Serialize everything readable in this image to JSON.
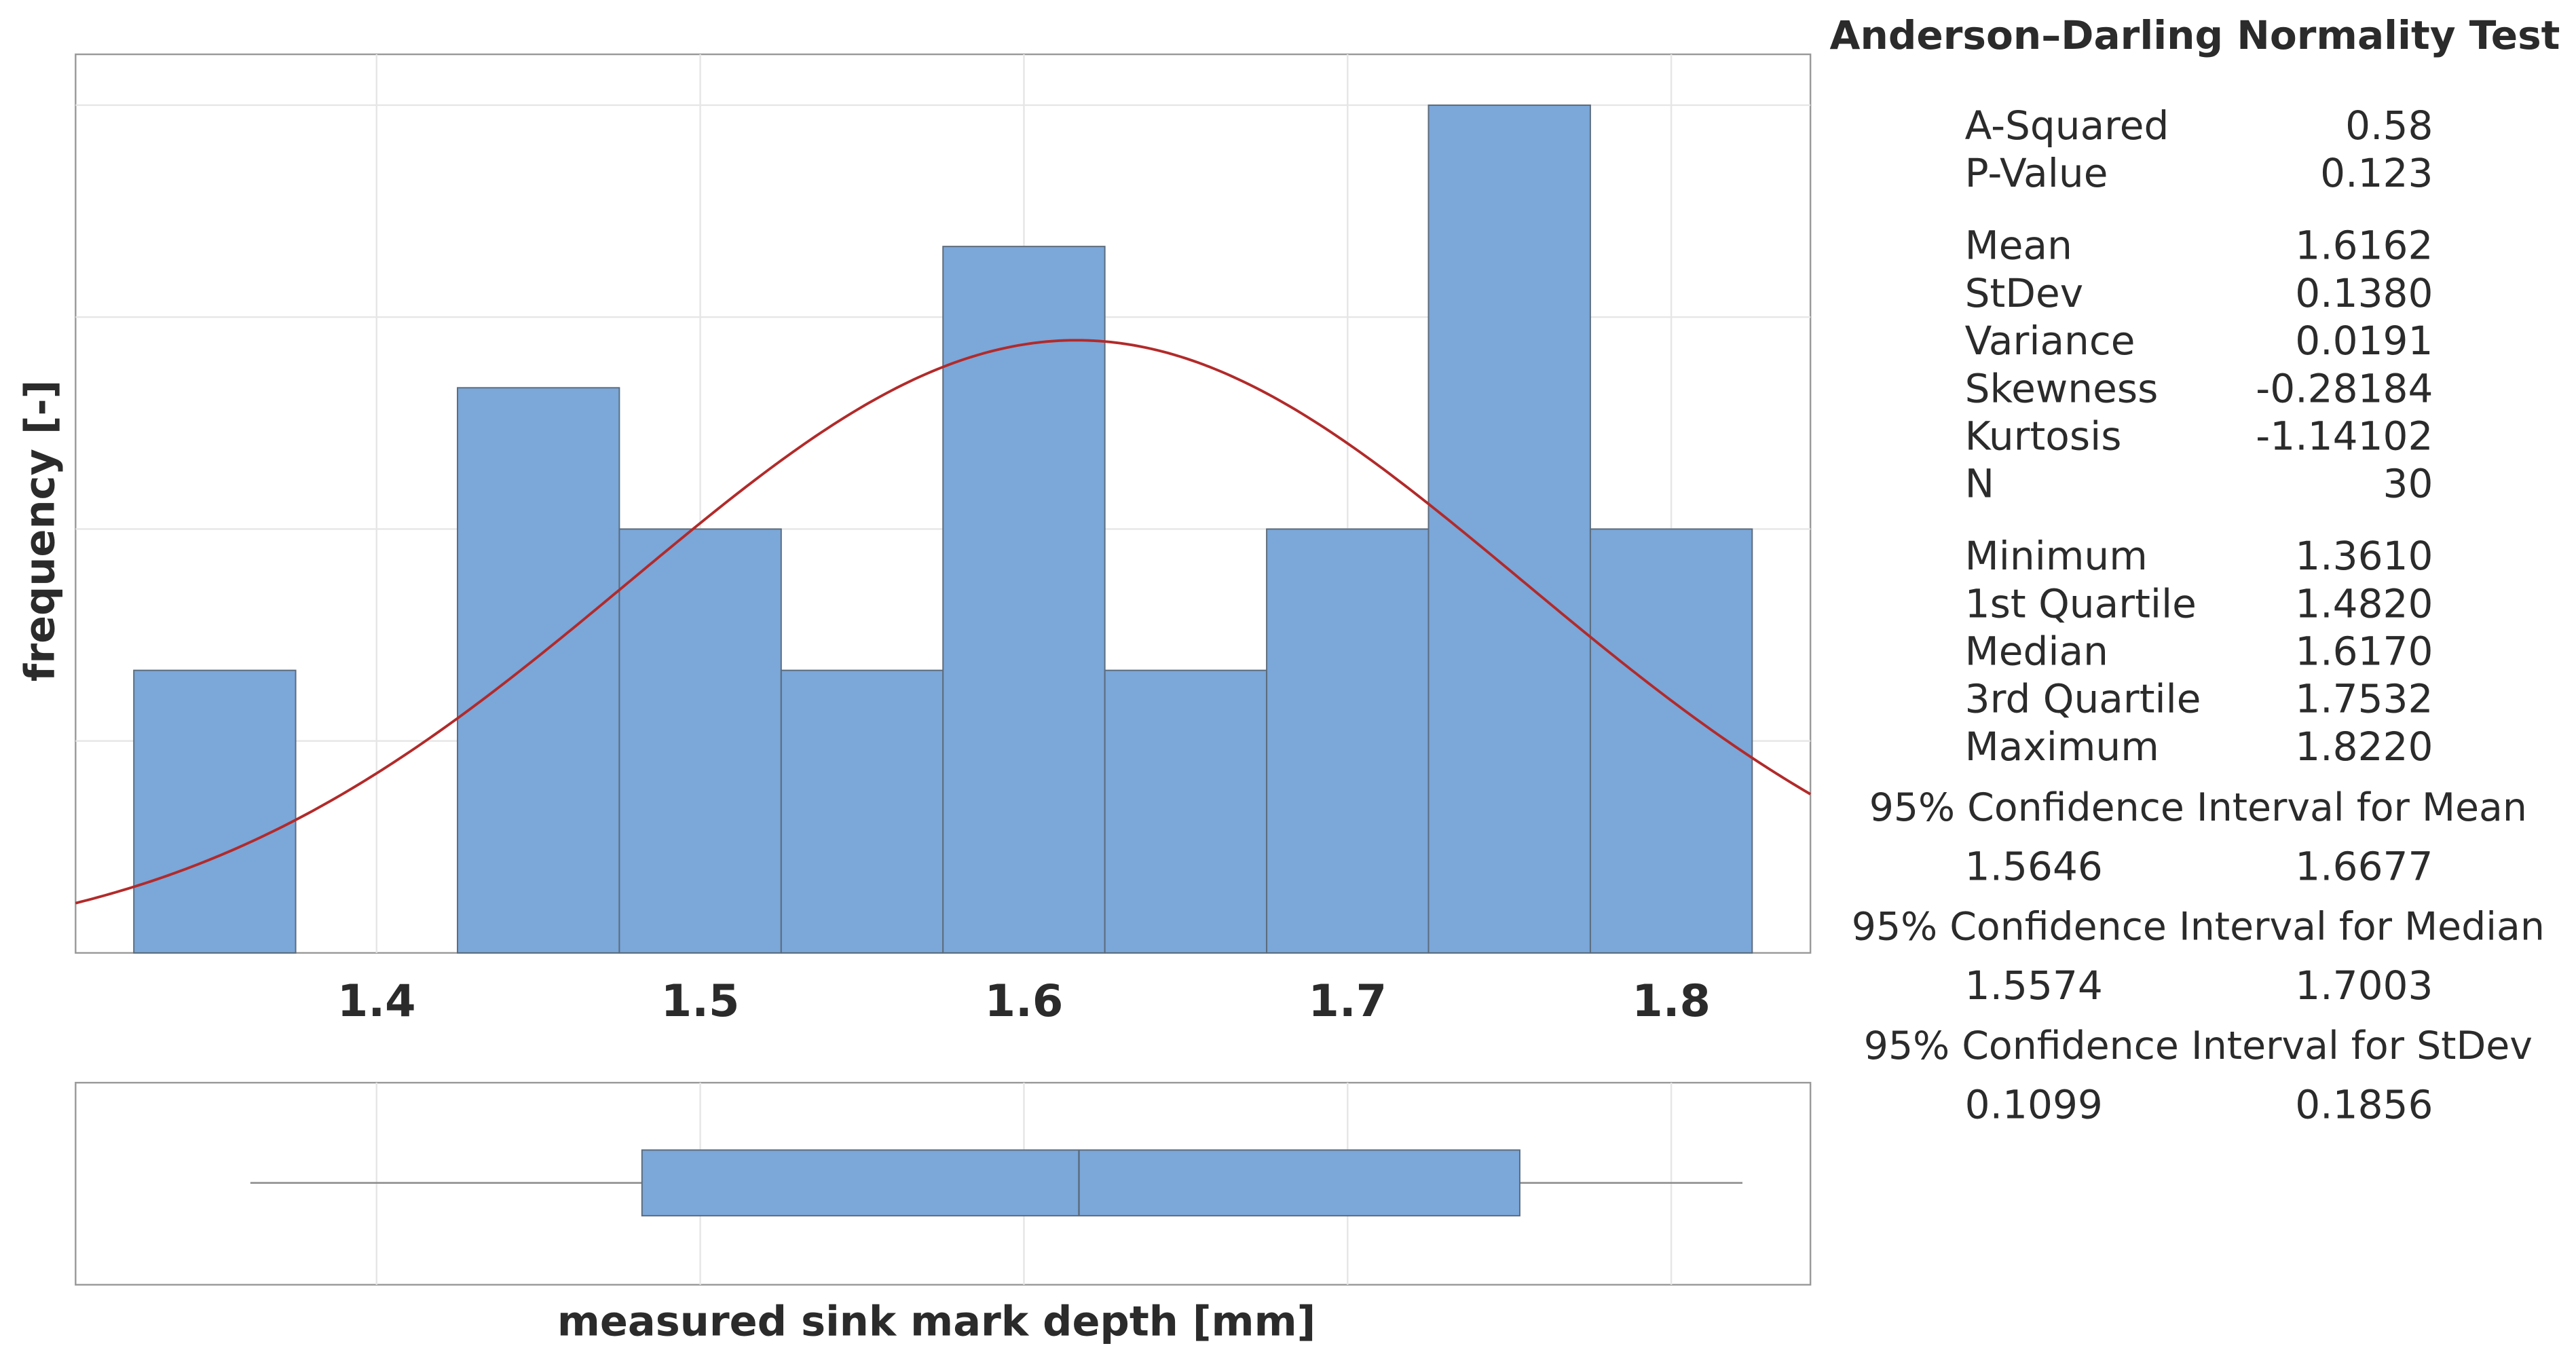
{
  "chart_data": [
    {
      "type": "histogram",
      "xlabel": "measured sink mark depth [mm]",
      "ylabel": "frequency [-]",
      "bins": [
        1.325,
        1.375,
        1.425,
        1.475,
        1.525,
        1.575,
        1.625,
        1.675,
        1.725,
        1.775,
        1.825
      ],
      "counts": [
        2,
        0,
        4,
        3,
        2,
        5,
        2,
        3,
        6,
        3
      ],
      "color": "#7ba7d9",
      "edge_color": "#5b6b7b",
      "curve_color": "#b22a2a",
      "xlim": [
        1.307,
        1.843
      ],
      "xticks": [
        1.4,
        1.5,
        1.6,
        1.7,
        1.8
      ],
      "ylim": [
        0,
        6.36
      ],
      "yticks": [
        1.5,
        3,
        4.5,
        6
      ],
      "grid": true
    },
    {
      "type": "boxplot",
      "color": "#7ba7d9",
      "xlim": [
        1.307,
        1.843
      ],
      "grid": true
    }
  ],
  "summary": {
    "title": "Anderson–Darling Normality Test",
    "groups": [
      [
        {
          "label": "A-Squared",
          "value": "0.58"
        },
        {
          "label": "P-Value",
          "value": "0.123"
        }
      ],
      [
        {
          "label": "Mean",
          "value": "1.6162"
        },
        {
          "label": "StDev",
          "value": "0.1380"
        },
        {
          "label": "Variance",
          "value": "0.0191"
        },
        {
          "label": "Skewness",
          "value": "-0.28184"
        },
        {
          "label": "Kurtosis",
          "value": "-1.14102"
        },
        {
          "label": "N",
          "value": "30"
        }
      ],
      [
        {
          "label": "Minimum",
          "value": "1.3610"
        },
        {
          "label": "1st Quartile",
          "value": "1.4820"
        },
        {
          "label": "Median",
          "value": "1.6170"
        },
        {
          "label": "3rd Quartile",
          "value": "1.7532"
        },
        {
          "label": "Maximum",
          "value": "1.8220"
        }
      ]
    ],
    "intervals": [
      {
        "title": "95% Confidence Interval for Mean",
        "low": "1.5646",
        "high": "1.6677"
      },
      {
        "title": "95% Confidence Interval for Median",
        "low": "1.5574",
        "high": "1.7003"
      },
      {
        "title": "95% Confidence Interval for StDev",
        "low": "0.1099",
        "high": "0.1856"
      }
    ]
  }
}
